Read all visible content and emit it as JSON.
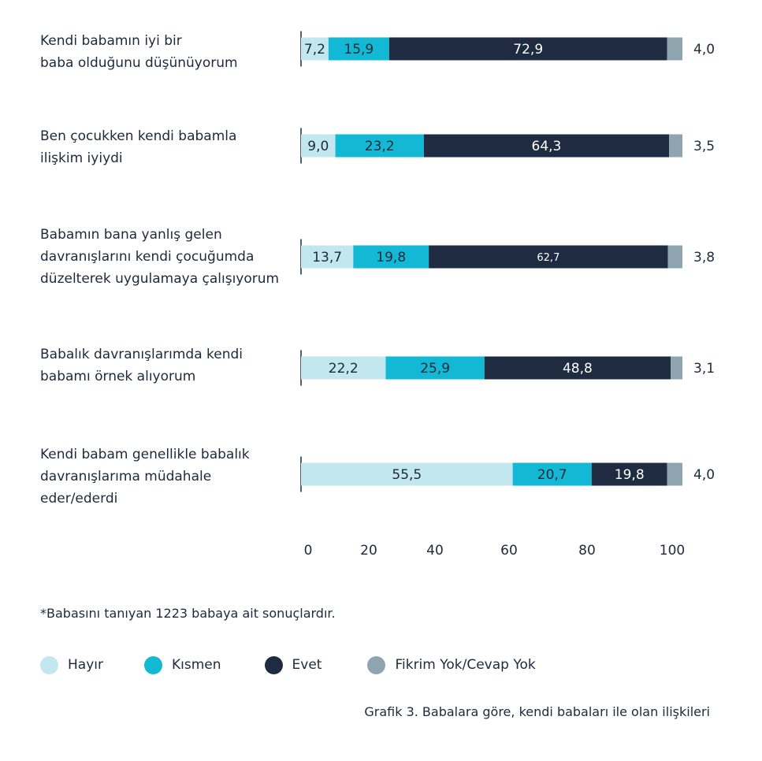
{
  "chart_data": {
    "type": "bar",
    "orientation": "horizontal",
    "stacked": true,
    "categories": [
      [
        "Kendi babamın iyi bir",
        "baba olduğunu düşünüyorum"
      ],
      [
        "Ben çocukken kendi babamla",
        "ilişkim iyiydi"
      ],
      [
        "Babamın bana yanlış gelen",
        "davranışlarını kendi çocuğumda",
        "düzelterek uygulamaya çalışıyorum"
      ],
      [
        "Babalık davranışlarımda kendi",
        "babamı örnek alıyorum"
      ],
      [
        "Kendi babam genellikle babalık",
        "davranışlarıma müdahale",
        "eder/ederdi"
      ]
    ],
    "series": [
      {
        "name": "Hayır",
        "color": "#c2e7ef",
        "text_color": "#1c2a3a",
        "values": [
          7.2,
          9.0,
          13.7,
          22.2,
          55.5
        ],
        "labels": [
          "7,2",
          "9,0",
          "13,7",
          "22,2",
          "55,5"
        ]
      },
      {
        "name": "Kısmen",
        "color": "#13b9d4",
        "text_color": "#1c2a3a",
        "values": [
          15.9,
          23.2,
          19.8,
          25.9,
          20.7
        ],
        "labels": [
          "15,9",
          "23,2",
          "19,8",
          "25,9",
          "20,7"
        ]
      },
      {
        "name": "Evet",
        "color": "#1e2b40",
        "text_color": "#ffffff",
        "values": [
          72.9,
          64.3,
          62.7,
          48.8,
          19.8
        ],
        "labels": [
          "72,9",
          "64,3",
          "62,7",
          "48,8",
          "19,8"
        ]
      },
      {
        "name": "Fikrim Yok/Cevap Yok",
        "color": "#8ea5b0",
        "text_color": "#1c2a3a",
        "values": [
          4.0,
          3.5,
          3.8,
          3.1,
          4.0
        ],
        "labels": [
          "4,0",
          "3,5",
          "3,8",
          "3,1",
          "4,0"
        ],
        "label_outside": true
      }
    ],
    "xlim": [
      0,
      100
    ],
    "xticks": [
      "0",
      "20",
      "40",
      "60",
      "80",
      "100"
    ],
    "legend_position": "bottom-left",
    "grid": false
  },
  "note": "*Babasını tanıyan 1223 babaya ait sonuçlardır.",
  "caption": "Grafik 3. Babalara göre, kendi babaları ile olan ilişkileri"
}
